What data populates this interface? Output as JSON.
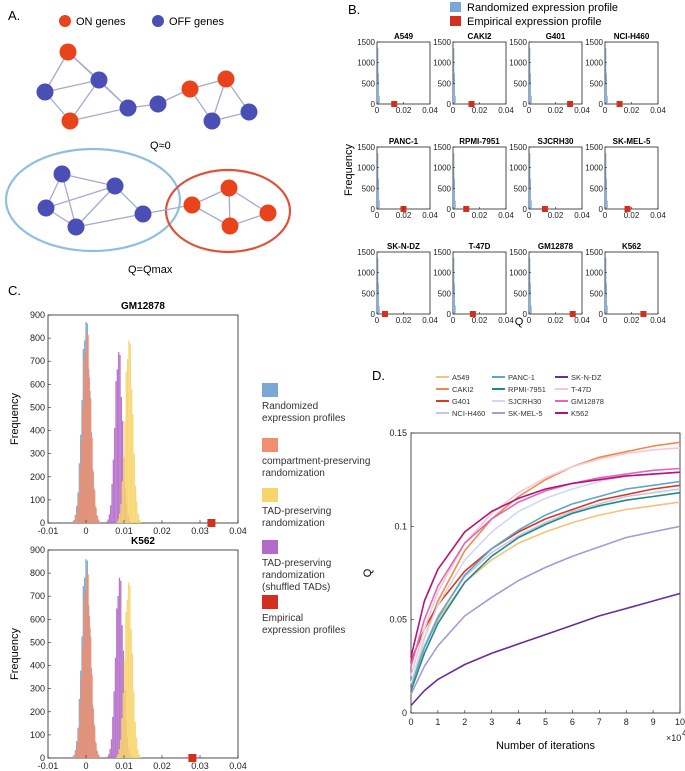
{
  "panels": {
    "A": {
      "label": "A.",
      "legend": [
        {
          "name": "ON genes",
          "color": "#e8431b"
        },
        {
          "name": "OFF genes",
          "color": "#4a4fb5"
        }
      ],
      "caption_top": "Q≈0",
      "caption_bottom": "Q=Qmax"
    },
    "B": {
      "label": "B.",
      "legend": [
        {
          "name": "Randomized expression profile",
          "color": "#7aa7d6"
        },
        {
          "name": "Empirical expression profile",
          "color": "#d32f1e"
        }
      ],
      "ylabel": "Frequency",
      "xlabel": "Q",
      "xticks": [
        "0",
        "0.02",
        "0.04"
      ],
      "yticks": [
        "0",
        "500",
        "1000",
        "1500"
      ]
    },
    "C": {
      "label": "C.",
      "ylabel": "Frequency",
      "xticks": [
        "-0.01",
        "0",
        "0.01",
        "0.02",
        "0.03",
        "0.04"
      ],
      "yticks": [
        "0",
        "100",
        "200",
        "300",
        "400",
        "500",
        "600",
        "700",
        "800",
        "900"
      ],
      "legend": [
        {
          "name": "Randomized\nexpression profiles",
          "color": "#7aa7d6"
        },
        {
          "name": "compartment-preserving\nrandomization",
          "color": "#ef8f6f"
        },
        {
          "name": "TAD-preserving\nrandomization",
          "color": "#f7d56a"
        },
        {
          "name": "TAD-preserving\nrandomization\n(shuffled TADs)",
          "color": "#b36bc9"
        },
        {
          "name": "Empirical\nexpression profiles",
          "color": "#d32f1e"
        }
      ]
    },
    "D": {
      "label": "D.",
      "ylabel": "Q",
      "xlabel": "Number of iterations",
      "xscale": "×10",
      "xscale_exp": "4",
      "xticks": [
        "0",
        "1",
        "2",
        "3",
        "4",
        "5",
        "6",
        "7",
        "8",
        "9",
        "10"
      ],
      "yticks": [
        "0",
        "0.05",
        "0.1",
        "0.15"
      ]
    }
  },
  "chart_data": [
    {
      "type": "bar",
      "panel": "B",
      "title": "A549",
      "xlim": [
        0,
        0.04
      ],
      "ylim": [
        0,
        1500
      ],
      "series": [
        {
          "name": "Randomized expression profile",
          "histogram_peak_x": 0.0005,
          "histogram_peak_y": 1350
        },
        {
          "name": "Empirical expression profile",
          "x": [
            0.013
          ]
        }
      ]
    },
    {
      "type": "bar",
      "panel": "B",
      "title": "CAKI2",
      "xlim": [
        0,
        0.04
      ],
      "ylim": [
        0,
        1500
      ],
      "series": [
        {
          "name": "Randomized expression profile",
          "histogram_peak_x": 0.0005,
          "histogram_peak_y": 1350
        },
        {
          "name": "Empirical expression profile",
          "x": [
            0.014
          ]
        }
      ]
    },
    {
      "type": "bar",
      "panel": "B",
      "title": "G401",
      "xlim": [
        0,
        0.04
      ],
      "ylim": [
        0,
        1500
      ],
      "series": [
        {
          "name": "Randomized expression profile",
          "histogram_peak_x": 0.0005,
          "histogram_peak_y": 1350
        },
        {
          "name": "Empirical expression profile",
          "x": [
            0.031
          ]
        }
      ]
    },
    {
      "type": "bar",
      "panel": "B",
      "title": "NCI-H460",
      "xlim": [
        0,
        0.04
      ],
      "ylim": [
        0,
        1500
      ],
      "series": [
        {
          "name": "Randomized expression profile",
          "histogram_peak_x": 0.0005,
          "histogram_peak_y": 1350
        },
        {
          "name": "Empirical expression profile",
          "x": [
            0.011
          ]
        }
      ]
    },
    {
      "type": "bar",
      "panel": "B",
      "title": "PANC-1",
      "xlim": [
        0,
        0.04
      ],
      "ylim": [
        0,
        1500
      ],
      "series": [
        {
          "name": "Randomized expression profile",
          "histogram_peak_x": 0.0005,
          "histogram_peak_y": 1350
        },
        {
          "name": "Empirical expression profile",
          "x": [
            0.02
          ]
        }
      ]
    },
    {
      "type": "bar",
      "panel": "B",
      "title": "RPMI-7951",
      "xlim": [
        0,
        0.04
      ],
      "ylim": [
        0,
        1500
      ],
      "series": [
        {
          "name": "Randomized expression profile",
          "histogram_peak_x": 0.0005,
          "histogram_peak_y": 1350
        },
        {
          "name": "Empirical expression profile",
          "x": [
            0.01
          ]
        }
      ]
    },
    {
      "type": "bar",
      "panel": "B",
      "title": "SJCRH30",
      "xlim": [
        0,
        0.04
      ],
      "ylim": [
        0,
        1500
      ],
      "series": [
        {
          "name": "Randomized expression profile",
          "histogram_peak_x": 0.0005,
          "histogram_peak_y": 1350
        },
        {
          "name": "Empirical expression profile",
          "x": [
            0.012
          ]
        }
      ]
    },
    {
      "type": "bar",
      "panel": "B",
      "title": "SK-MEL-5",
      "xlim": [
        0,
        0.04
      ],
      "ylim": [
        0,
        1500
      ],
      "series": [
        {
          "name": "Randomized expression profile",
          "histogram_peak_x": 0.0005,
          "histogram_peak_y": 1350
        },
        {
          "name": "Empirical expression profile",
          "x": [
            0.017
          ]
        }
      ]
    },
    {
      "type": "bar",
      "panel": "B",
      "title": "SK-N-DZ",
      "xlim": [
        0,
        0.04
      ],
      "ylim": [
        0,
        1500
      ],
      "series": [
        {
          "name": "Randomized expression profile",
          "histogram_peak_x": 0.0005,
          "histogram_peak_y": 1350
        },
        {
          "name": "Empirical expression profile",
          "x": [
            0.006
          ]
        }
      ]
    },
    {
      "type": "bar",
      "panel": "B",
      "title": "T-47D",
      "xlim": [
        0,
        0.04
      ],
      "ylim": [
        0,
        1500
      ],
      "series": [
        {
          "name": "Randomized expression profile",
          "histogram_peak_x": 0.0005,
          "histogram_peak_y": 1350
        },
        {
          "name": "Empirical expression profile",
          "x": [
            0.015
          ]
        }
      ]
    },
    {
      "type": "bar",
      "panel": "B",
      "title": "GM12878",
      "xlim": [
        0,
        0.04
      ],
      "ylim": [
        0,
        1500
      ],
      "series": [
        {
          "name": "Randomized expression profile",
          "histogram_peak_x": 0.0005,
          "histogram_peak_y": 1350
        },
        {
          "name": "Empirical expression profile",
          "x": [
            0.033
          ]
        }
      ]
    },
    {
      "type": "bar",
      "panel": "B",
      "title": "K562",
      "xlim": [
        0,
        0.04
      ],
      "ylim": [
        0,
        1500
      ],
      "series": [
        {
          "name": "Randomized expression profile",
          "histogram_peak_x": 0.0005,
          "histogram_peak_y": 1350
        },
        {
          "name": "Empirical expression profile",
          "x": [
            0.029
          ]
        }
      ]
    },
    {
      "type": "bar",
      "panel": "C",
      "title": "GM12878",
      "xlim": [
        -0.01,
        0.04
      ],
      "ylim": [
        0,
        900
      ],
      "series": [
        {
          "name": "Randomized expression profiles",
          "mean": 0.0,
          "sd": 0.0011,
          "peak": 870
        },
        {
          "name": "compartment-preserving randomization",
          "mean": 0.0002,
          "sd": 0.0011,
          "peak": 820
        },
        {
          "name": "TAD-preserving randomization",
          "mean": 0.0113,
          "sd": 0.001,
          "peak": 790
        },
        {
          "name": "TAD-preserving randomization (shuffled TADs)",
          "mean": 0.0086,
          "sd": 0.001,
          "peak": 740
        },
        {
          "name": "Empirical expression profiles",
          "x": [
            0.033
          ]
        }
      ]
    },
    {
      "type": "bar",
      "panel": "C",
      "title": "K562",
      "xlim": [
        -0.01,
        0.04
      ],
      "ylim": [
        0,
        900
      ],
      "series": [
        {
          "name": "Randomized expression profiles",
          "mean": 0.0,
          "sd": 0.0011,
          "peak": 860
        },
        {
          "name": "compartment-preserving randomization",
          "mean": 0.0002,
          "sd": 0.0011,
          "peak": 800
        },
        {
          "name": "TAD-preserving randomization",
          "mean": 0.0112,
          "sd": 0.001,
          "peak": 760
        },
        {
          "name": "TAD-preserving randomization (shuffled TADs)",
          "mean": 0.0088,
          "sd": 0.001,
          "peak": 780
        },
        {
          "name": "Empirical expression profiles",
          "x": [
            0.028
          ]
        }
      ]
    },
    {
      "type": "line",
      "panel": "D",
      "xlim": [
        0,
        10
      ],
      "ylim": [
        0,
        0.15
      ],
      "x": [
        0,
        0.5,
        1,
        2,
        3,
        4,
        5,
        6,
        7,
        8,
        9,
        10
      ],
      "series": [
        {
          "name": "A549",
          "color": "#f5c27a",
          "values": [
            0.012,
            0.035,
            0.05,
            0.07,
            0.082,
            0.091,
            0.097,
            0.102,
            0.106,
            0.109,
            0.111,
            0.113
          ]
        },
        {
          "name": "CAKI2",
          "color": "#f08a4b",
          "values": [
            0.015,
            0.04,
            0.06,
            0.087,
            0.104,
            0.116,
            0.125,
            0.132,
            0.137,
            0.14,
            0.143,
            0.145
          ]
        },
        {
          "name": "G401",
          "color": "#d83a1f",
          "values": [
            0.028,
            0.045,
            0.058,
            0.076,
            0.088,
            0.097,
            0.104,
            0.109,
            0.114,
            0.117,
            0.12,
            0.122
          ]
        },
        {
          "name": "NCI-H460",
          "color": "#c9c3e6",
          "values": [
            0.015,
            0.036,
            0.052,
            0.073,
            0.086,
            0.095,
            0.102,
            0.108,
            0.112,
            0.116,
            0.118,
            0.12
          ]
        },
        {
          "name": "PANC-1",
          "color": "#5aa6cf",
          "values": [
            0.015,
            0.035,
            0.051,
            0.074,
            0.088,
            0.098,
            0.106,
            0.112,
            0.116,
            0.12,
            0.122,
            0.124
          ]
        },
        {
          "name": "RPMI-7951",
          "color": "#1f8a8a",
          "values": [
            0.012,
            0.032,
            0.048,
            0.07,
            0.084,
            0.094,
            0.101,
            0.107,
            0.111,
            0.114,
            0.116,
            0.118
          ]
        },
        {
          "name": "SJCRH30",
          "color": "#d4d7ee",
          "values": [
            0.016,
            0.04,
            0.058,
            0.082,
            0.097,
            0.108,
            0.115,
            0.12,
            0.124,
            0.127,
            0.128,
            0.129
          ]
        },
        {
          "name": "SK-MEL-5",
          "color": "#a79ad6",
          "values": [
            0.01,
            0.025,
            0.036,
            0.052,
            0.062,
            0.071,
            0.078,
            0.084,
            0.089,
            0.094,
            0.097,
            0.1
          ]
        },
        {
          "name": "SK-N-DZ",
          "color": "#6a2c9c",
          "values": [
            0.004,
            0.012,
            0.018,
            0.026,
            0.032,
            0.037,
            0.042,
            0.047,
            0.052,
            0.056,
            0.06,
            0.064
          ]
        },
        {
          "name": "T-47D",
          "color": "#f6c7d6",
          "values": [
            0.02,
            0.045,
            0.065,
            0.091,
            0.107,
            0.118,
            0.126,
            0.132,
            0.136,
            0.139,
            0.141,
            0.142
          ]
        },
        {
          "name": "GM12878",
          "color": "#e268b6",
          "values": [
            0.025,
            0.05,
            0.068,
            0.091,
            0.104,
            0.113,
            0.119,
            0.123,
            0.126,
            0.128,
            0.13,
            0.131
          ]
        },
        {
          "name": "K562",
          "color": "#b5117c",
          "values": [
            0.03,
            0.06,
            0.077,
            0.097,
            0.108,
            0.115,
            0.12,
            0.123,
            0.125,
            0.127,
            0.128,
            0.129
          ]
        }
      ]
    }
  ]
}
